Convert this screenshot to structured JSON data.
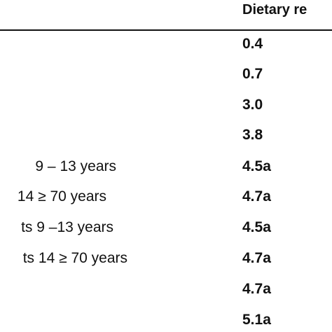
{
  "table": {
    "header": {
      "group_label": "",
      "value_label": "Dietary re"
    },
    "rows": [
      {
        "group": "",
        "value": "0.4"
      },
      {
        "group": "",
        "value": "0.7"
      },
      {
        "group": "",
        "value": "3.0"
      },
      {
        "group": "",
        "value": "3.8"
      },
      {
        "group": "9 – 13 years",
        "value": "4.5a"
      },
      {
        "group": "14 ≥ 70 years",
        "value": "4.7a"
      },
      {
        "group": "ts 9 –13 years",
        "value": "4.5a"
      },
      {
        "group": "ts 14 ≥ 70 years",
        "value": "4.7a"
      },
      {
        "group": "",
        "value": "4.7a"
      },
      {
        "group": "",
        "value": "5.1a"
      }
    ]
  }
}
